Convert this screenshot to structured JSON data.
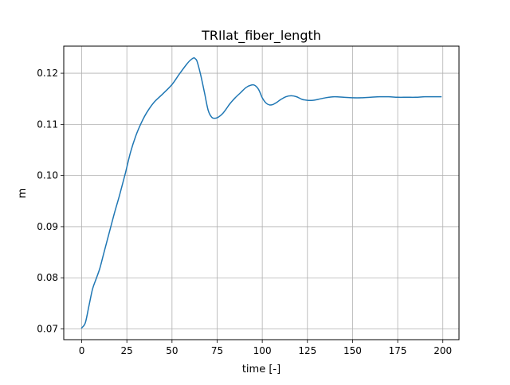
{
  "chart_data": {
    "type": "line",
    "title": "TRIlat_fiber_length",
    "xlabel": "time [-]",
    "ylabel": "m",
    "xlim": [
      -9.95,
      208.95
    ],
    "ylim": [
      0.0679,
      0.1253
    ],
    "x_ticks": [
      0,
      25,
      50,
      75,
      100,
      125,
      150,
      175,
      200
    ],
    "x_tick_labels": [
      "0",
      "25",
      "50",
      "75",
      "100",
      "125",
      "150",
      "175",
      "200"
    ],
    "y_ticks": [
      0.07,
      0.08,
      0.09,
      0.1,
      0.11,
      0.12
    ],
    "y_tick_labels": [
      "0.07",
      "0.08",
      "0.09",
      "0.10",
      "0.11",
      "0.12"
    ],
    "grid": true,
    "legend": "none",
    "series": [
      {
        "color": "#1f77b4",
        "x": [
          0,
          2,
          4,
          6,
          8,
          10,
          12,
          15,
          18,
          21,
          24,
          27,
          30,
          33,
          36,
          40,
          45,
          50,
          54,
          58,
          60,
          62,
          63,
          64,
          66,
          68,
          70,
          72,
          74,
          76,
          78,
          80,
          82,
          85,
          88,
          91,
          94,
          96,
          98,
          100,
          102,
          104,
          106,
          108,
          110,
          113,
          116,
          119,
          122,
          125,
          128,
          131,
          135,
          140,
          145,
          150,
          155,
          160,
          165,
          170,
          175,
          180,
          185,
          190,
          195,
          199
        ],
        "y": [
          0.0702,
          0.0712,
          0.0745,
          0.0778,
          0.0798,
          0.0818,
          0.0845,
          0.0885,
          0.0925,
          0.0962,
          0.1002,
          0.1045,
          0.1078,
          0.1103,
          0.1123,
          0.1143,
          0.116,
          0.1178,
          0.1198,
          0.1217,
          0.1225,
          0.123,
          0.1228,
          0.1222,
          0.1195,
          0.1162,
          0.1128,
          0.1114,
          0.1112,
          0.1115,
          0.1121,
          0.113,
          0.114,
          0.1152,
          0.1162,
          0.1172,
          0.1177,
          0.1176,
          0.1168,
          0.1152,
          0.1142,
          0.1138,
          0.1139,
          0.1143,
          0.1148,
          0.1154,
          0.1156,
          0.1154,
          0.1149,
          0.1147,
          0.1147,
          0.1149,
          0.1152,
          0.1154,
          0.1153,
          0.1152,
          0.1152,
          0.1153,
          0.1154,
          0.1154,
          0.1153,
          0.1153,
          0.1153,
          0.1154,
          0.1154,
          0.1154
        ]
      }
    ]
  }
}
